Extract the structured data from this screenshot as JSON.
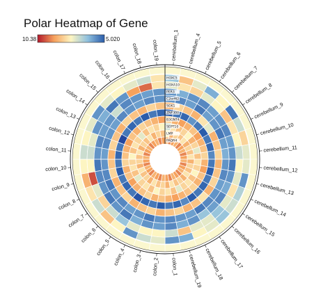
{
  "chart_data": {
    "type": "heatmap",
    "title": "Polar Heatmap of Gene",
    "legend": {
      "min_label": "10.38",
      "max_label": "5.020",
      "placement": "top-left"
    },
    "colors": {
      "low": "#b2182b",
      "mid_low": "#f6a25d",
      "mid": "#fdf5c2",
      "mid_high": "#8fc0de",
      "high": "#2a5caa",
      "max": "#1d2f8f",
      "border": "#ffffff",
      "ring": "#111111"
    },
    "samples": [
      "cerebellum_1",
      "cerebellum_4",
      "cerebellum_5",
      "cerebellum_6",
      "cerebellum_7",
      "cerebellum_8",
      "cerebellum_9",
      "cerebellum_10",
      "cerebellum_11",
      "cerebellum_12",
      "cerebellum_13",
      "cerebellum_14",
      "cerebellum_15",
      "cerebellum_16",
      "cerebellum_17",
      "cerebellum_18",
      "cerebellum_19",
      "colon_1",
      "colon_2",
      "colon_3",
      "colon_4",
      "colon_5",
      "colon_6",
      "colon_7",
      "colon_8",
      "colon_9",
      "colon_10",
      "colon_11",
      "colon_12",
      "colon_13",
      "colon_14",
      "colon_15",
      "colon_16",
      "colon_17",
      "colon_18",
      "colon_19"
    ],
    "genes": [
      "HOXC5",
      "HOXA10",
      "PER3",
      "C2orf62",
      "SGK1",
      "ZNF300",
      "B3GNT4",
      "SEPT10",
      "LMP",
      "PAQR4"
    ],
    "values": [
      [
        0.7,
        0.35,
        0.55,
        0.75,
        0.5,
        0.85,
        0.6,
        0.4,
        0.55,
        0.55,
        0.8,
        0.65,
        0.6,
        0.7,
        0.55,
        0.5,
        0.75,
        0.8,
        0.55,
        0.6,
        0.8,
        0.5,
        0.35,
        0.6,
        0.45,
        0.3,
        0.5,
        0.6,
        0.5,
        0.55,
        0.8,
        0.55,
        0.5,
        0.55,
        0.6,
        0.45
      ],
      [
        0.55,
        0.45,
        0.4,
        0.55,
        0.5,
        0.35,
        0.45,
        0.5,
        0.6,
        0.5,
        0.55,
        0.45,
        0.55,
        0.7,
        0.55,
        0.55,
        0.35,
        0.6,
        0.5,
        0.5,
        0.55,
        0.7,
        0.6,
        0.4,
        0.55,
        0.1,
        0.5,
        0.6,
        0.55,
        0.8,
        0.75,
        0.85,
        0.8,
        0.25,
        0.15,
        0.45
      ],
      [
        0.8,
        0.75,
        0.8,
        0.82,
        0.78,
        0.8,
        0.82,
        0.78,
        0.8,
        0.85,
        0.8,
        0.76,
        0.82,
        0.78,
        0.7,
        0.8,
        0.75,
        0.82,
        0.78,
        0.8,
        0.75,
        0.85,
        0.8,
        0.85,
        0.8,
        0.82,
        0.85,
        0.8,
        0.82,
        0.78,
        0.8,
        0.6,
        0.82,
        0.8,
        0.78,
        0.8
      ],
      [
        0.8,
        0.82,
        0.78,
        0.85,
        0.78,
        0.8,
        0.85,
        0.78,
        0.75,
        0.8,
        0.82,
        0.78,
        0.8,
        0.82,
        0.85,
        0.78,
        0.8,
        0.82,
        0.8,
        0.85,
        0.8,
        0.78,
        0.82,
        0.8,
        0.85,
        0.82,
        0.8,
        0.78,
        0.82,
        0.8,
        0.78,
        0.82,
        0.8,
        0.78,
        0.82,
        0.8
      ],
      [
        0.3,
        0.4,
        0.35,
        0.3,
        0.45,
        0.55,
        0.3,
        0.35,
        0.4,
        0.3,
        0.35,
        0.4,
        0.3,
        0.45,
        0.35,
        0.3,
        0.4,
        0.35,
        0.3,
        0.4,
        0.35,
        0.3,
        0.4,
        0.35,
        0.3,
        0.4,
        0.35,
        0.3,
        0.4,
        0.35,
        0.3,
        0.4,
        0.35,
        0.3,
        0.4,
        0.35
      ],
      [
        0.9,
        0.85,
        0.88,
        0.8,
        0.85,
        0.9,
        0.85,
        0.88,
        0.82,
        0.85,
        0.9,
        0.85,
        0.88,
        0.85,
        0.9,
        0.82,
        0.88,
        0.85,
        0.9,
        0.85,
        0.88,
        0.92,
        0.85,
        0.88,
        0.85,
        0.9,
        0.85,
        0.88,
        0.85,
        0.95,
        0.85,
        0.88,
        0.85,
        0.9,
        0.85,
        0.88
      ],
      [
        0.4,
        0.3,
        0.25,
        0.3,
        0.35,
        0.25,
        0.3,
        0.35,
        0.4,
        0.3,
        0.25,
        0.35,
        0.3,
        0.4,
        0.35,
        0.3,
        0.25,
        0.3,
        0.35,
        0.3,
        0.4,
        0.35,
        0.3,
        0.25,
        0.35,
        0.3,
        0.4,
        0.35,
        0.3,
        0.25,
        0.35,
        0.3,
        0.4,
        0.35,
        0.3,
        0.25
      ],
      [
        0.6,
        0.45,
        0.35,
        0.4,
        0.5,
        0.3,
        0.4,
        0.55,
        0.35,
        0.45,
        0.4,
        0.5,
        0.35,
        0.45,
        0.4,
        0.55,
        0.35,
        0.45,
        0.4,
        0.5,
        0.35,
        0.45,
        0.4,
        0.55,
        0.35,
        0.45,
        0.4,
        0.5,
        0.35,
        0.45,
        0.4,
        0.55,
        0.35,
        0.45,
        0.4,
        0.5
      ],
      [
        0.5,
        0.3,
        0.4,
        0.35,
        0.45,
        0.3,
        0.4,
        0.35,
        0.45,
        0.3,
        0.4,
        0.35,
        0.45,
        0.3,
        0.4,
        0.35,
        0.45,
        0.3,
        0.4,
        0.35,
        0.45,
        0.3,
        0.4,
        0.35,
        0.45,
        0.3,
        0.4,
        0.35,
        0.45,
        0.3,
        0.4,
        0.35,
        0.45,
        0.3,
        0.4,
        0.35
      ],
      [
        0.3,
        0.2,
        0.25,
        0.3,
        0.2,
        0.25,
        0.3,
        0.2,
        0.25,
        0.3,
        0.2,
        0.25,
        0.3,
        0.2,
        0.25,
        0.3,
        0.2,
        0.25,
        0.3,
        0.2,
        0.25,
        0.3,
        0.2,
        0.25,
        0.3,
        0.2,
        0.25,
        0.3,
        0.2,
        0.25,
        0.3,
        0.2,
        0.25,
        0.3,
        0.2,
        0.25
      ]
    ],
    "grid": false
  }
}
